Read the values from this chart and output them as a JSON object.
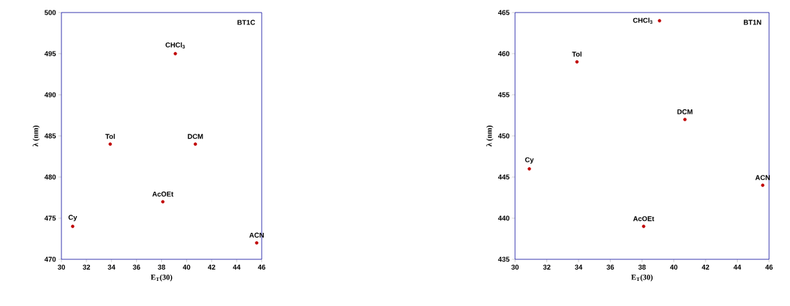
{
  "chart_data": [
    {
      "type": "scatter",
      "xlabel": "E$_{T}$(30)",
      "ylabel": "λ (nm)",
      "x": [
        30.9,
        33.9,
        38.1,
        39.1,
        40.7,
        45.6
      ],
      "values": [
        474,
        484,
        477,
        495,
        484,
        472
      ],
      "color": "#c00000",
      "marker": "circle",
      "xlim": [
        30,
        46
      ],
      "ylim": [
        470,
        500
      ],
      "xticks": [
        30,
        32,
        34,
        36,
        38,
        40,
        42,
        44,
        46
      ],
      "yticks": [
        470,
        475,
        480,
        485,
        490,
        495,
        500
      ],
      "grid": false,
      "annotations": [
        "BT1C",
        {
          "text": "Cy",
          "x": 30.9,
          "y": 474
        },
        {
          "text": "Tol",
          "x": 33.9,
          "y": 484
        },
        {
          "text": "AcOEt",
          "x": 38.1,
          "y": 477
        },
        {
          "text": "CHCl$_{3}$",
          "x": 39.1,
          "y": 495
        },
        {
          "text": "DCM",
          "x": 40.7,
          "y": 484
        },
        {
          "text": "ACN",
          "x": 45.6,
          "y": 472
        }
      ]
    },
    {
      "type": "scatter",
      "xlabel": "E$_{T}$(30)",
      "ylabel": "λ (nm)",
      "x": [
        30.9,
        33.9,
        38.1,
        39.1,
        40.7,
        45.6
      ],
      "values": [
        446,
        459,
        439,
        464,
        452,
        444
      ],
      "color": "#c00000",
      "marker": "circle",
      "xlim": [
        30,
        46
      ],
      "ylim": [
        435,
        465
      ],
      "xticks": [
        30,
        32,
        34,
        36,
        38,
        40,
        42,
        44,
        46
      ],
      "yticks": [
        435,
        440,
        445,
        450,
        455,
        460,
        465
      ],
      "grid": false,
      "annotations": [
        "BT1N",
        {
          "text": "Cy",
          "x": 30.9,
          "y": 446
        },
        {
          "text": "Tol",
          "x": 33.9,
          "y": 459
        },
        {
          "text": "AcOEt",
          "x": 38.1,
          "y": 439
        },
        {
          "text": "CHCl$_{3}$",
          "x": 39.1,
          "y": 464
        },
        {
          "text": "DCM",
          "x": 40.7,
          "y": 452
        },
        {
          "text": "ACN",
          "x": 45.6,
          "y": 444
        }
      ]
    }
  ]
}
